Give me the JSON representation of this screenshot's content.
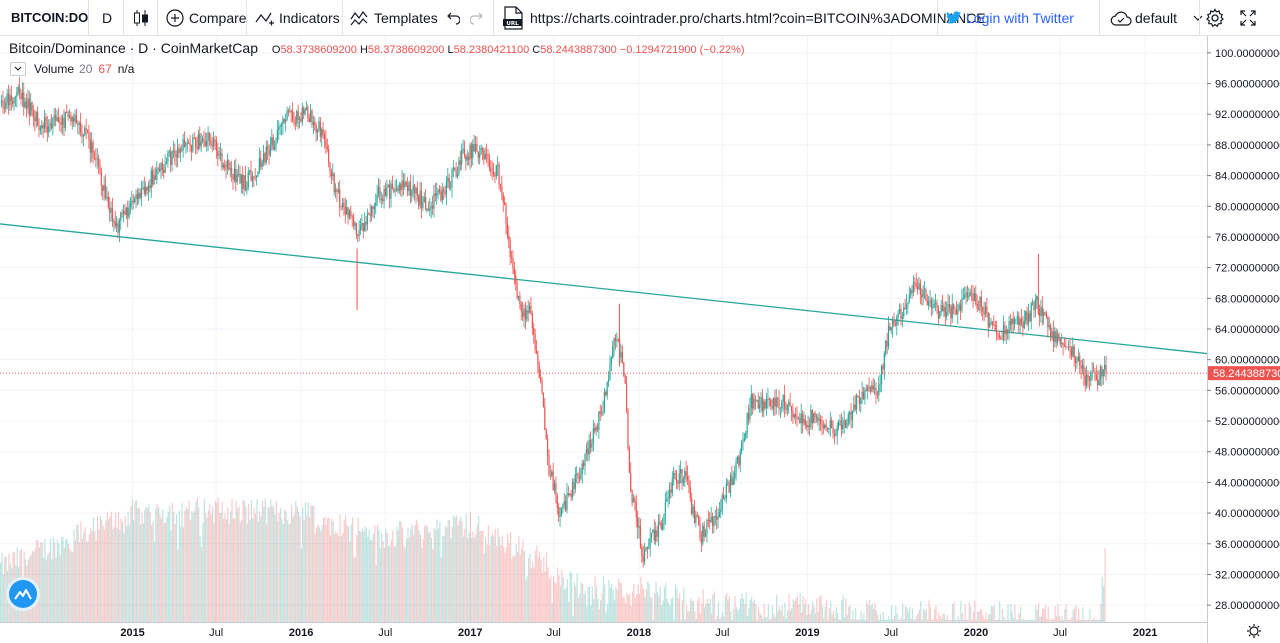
{
  "toolbar": {
    "symbol": "BITCOIN:DO",
    "interval": "D",
    "compare": "Compare",
    "indicators": "Indicators",
    "templates": "Templates",
    "url": "https://charts.cointrader.pro/charts.html?coin=BITCOIN%3ADOMINANCE",
    "login": "Login with Twitter",
    "layout": "default"
  },
  "legend": {
    "title": "Bitcoin/Dominance · D · CoinMarketCap",
    "o_label": "O",
    "o": "58.3738609200",
    "h_label": "H",
    "h": "58.3738609200",
    "l_label": "L",
    "l": "58.2380421100",
    "c_label": "C",
    "c": "58.2443887300",
    "change": "−0.1294721900 (−0.22%)"
  },
  "volume_legend": {
    "label": "Volume",
    "period": "20",
    "value": "67",
    "na": "n/a"
  },
  "colors": {
    "up": "#26a69a",
    "down": "#ef5350",
    "trendline": "#26a69a",
    "last_price": "#ef5350",
    "grid": "#f0f3fa"
  },
  "icons": [
    "candles-icon",
    "compare-plus-icon",
    "indicators-icon",
    "templates-icon",
    "undo-icon",
    "redo-icon",
    "url-icon",
    "twitter-icon",
    "cloud-icon",
    "chevron-down-icon",
    "settings-gear-icon",
    "fullscreen-icon",
    "camera-icon",
    "brand-logo-icon"
  ],
  "chart_data": {
    "type": "candlestick",
    "title": "Bitcoin/Dominance · D · CoinMarketCap",
    "y_scale": {
      "ylim": [
        25.8,
        102.2
      ],
      "ticks": [
        "100.000000000",
        "96.000000000",
        "92.000000000",
        "88.000000000",
        "84.000000000",
        "80.000000000",
        "76.000000000",
        "72.000000000",
        "68.000000000",
        "64.000000000",
        "60.000000000",
        "56.000000000",
        "52.000000000",
        "48.000000000",
        "44.000000000",
        "40.000000000",
        "36.000000000",
        "32.000000000",
        "28.000000000"
      ]
    },
    "x_axis": {
      "xlim": [
        "2014-03-20",
        "2021-05-15"
      ],
      "ticks": [
        {
          "label": "2015",
          "date": "2015-01-01"
        },
        {
          "label": "Jul",
          "date": "2015-07-01"
        },
        {
          "label": "2016",
          "date": "2016-01-01"
        },
        {
          "label": "Jul",
          "date": "2016-07-01"
        },
        {
          "label": "2017",
          "date": "2017-01-01"
        },
        {
          "label": "Jul",
          "date": "2017-07-01"
        },
        {
          "label": "2018",
          "date": "2018-01-01"
        },
        {
          "label": "Jul",
          "date": "2018-07-01"
        },
        {
          "label": "2019",
          "date": "2019-01-01"
        },
        {
          "label": "Jul",
          "date": "2019-07-01"
        },
        {
          "label": "2020",
          "date": "2020-01-01"
        },
        {
          "label": "Jul",
          "date": "2020-07-01"
        },
        {
          "label": "2021",
          "date": "2021-01-01"
        }
      ]
    },
    "price_path": [
      [
        "2014-03-20",
        93.5
      ],
      [
        "2014-05-01",
        94.8
      ],
      [
        "2014-06-15",
        90.5
      ],
      [
        "2014-09-01",
        91.5
      ],
      [
        "2014-10-10",
        87.0
      ],
      [
        "2014-11-25",
        77.0
      ],
      [
        "2015-01-01",
        80.5
      ],
      [
        "2015-02-20",
        84.5
      ],
      [
        "2015-04-15",
        87.5
      ],
      [
        "2015-06-10",
        89.0
      ],
      [
        "2015-08-01",
        84.5
      ],
      [
        "2015-09-01",
        83.0
      ],
      [
        "2015-10-15",
        86.5
      ],
      [
        "2015-12-01",
        91.5
      ],
      [
        "2016-01-15",
        92.0
      ],
      [
        "2016-02-15",
        89.5
      ],
      [
        "2016-03-15",
        82.0
      ],
      [
        "2016-05-05",
        76.0
      ],
      [
        "2016-06-15",
        81.5
      ],
      [
        "2016-08-15",
        82.5
      ],
      [
        "2016-10-01",
        80.0
      ],
      [
        "2016-11-15",
        83.0
      ],
      [
        "2016-12-15",
        86.5
      ],
      [
        "2017-01-15",
        87.5
      ],
      [
        "2017-02-10",
        85.5
      ],
      [
        "2017-03-01",
        84.5
      ],
      [
        "2017-03-15",
        80.0
      ],
      [
        "2017-04-01",
        72.0
      ],
      [
        "2017-04-20",
        66.5
      ],
      [
        "2017-05-10",
        66.0
      ],
      [
        "2017-06-01",
        57.0
      ],
      [
        "2017-06-20",
        46.0
      ],
      [
        "2017-07-15",
        39.5
      ],
      [
        "2017-08-15",
        44.0
      ],
      [
        "2017-09-10",
        48.0
      ],
      [
        "2017-10-15",
        54.0
      ],
      [
        "2017-11-10",
        63.5
      ],
      [
        "2017-12-01",
        58.0
      ],
      [
        "2017-12-12",
        44.0
      ],
      [
        "2017-12-25",
        40.0
      ],
      [
        "2018-01-10",
        34.0
      ],
      [
        "2018-01-25",
        36.5
      ],
      [
        "2018-02-15",
        38.0
      ],
      [
        "2018-03-15",
        44.5
      ],
      [
        "2018-04-10",
        45.0
      ],
      [
        "2018-04-25",
        41.0
      ],
      [
        "2018-05-15",
        37.0
      ],
      [
        "2018-06-15",
        39.5
      ],
      [
        "2018-08-01",
        46.0
      ],
      [
        "2018-09-01",
        54.5
      ],
      [
        "2018-10-01",
        54.0
      ],
      [
        "2018-11-15",
        54.5
      ],
      [
        "2018-12-15",
        52.0
      ],
      [
        "2019-01-20",
        52.5
      ],
      [
        "2019-03-01",
        51.0
      ],
      [
        "2019-04-01",
        52.0
      ],
      [
        "2019-04-20",
        55.0
      ],
      [
        "2019-05-15",
        56.5
      ],
      [
        "2019-06-01",
        56.0
      ],
      [
        "2019-06-25",
        63.5
      ],
      [
        "2019-07-20",
        66.0
      ],
      [
        "2019-08-20",
        69.5
      ],
      [
        "2019-09-15",
        68.0
      ],
      [
        "2019-10-15",
        66.0
      ],
      [
        "2019-11-15",
        66.5
      ],
      [
        "2019-12-15",
        68.5
      ],
      [
        "2020-01-15",
        67.0
      ],
      [
        "2020-02-15",
        62.5
      ],
      [
        "2020-03-10",
        64.5
      ],
      [
        "2020-04-15",
        65.0
      ],
      [
        "2020-05-10",
        67.5
      ],
      [
        "2020-05-25",
        65.5
      ],
      [
        "2020-06-15",
        63.5
      ],
      [
        "2020-07-15",
        61.5
      ],
      [
        "2020-08-01",
        60.5
      ],
      [
        "2020-08-25",
        57.5
      ],
      [
        "2020-09-15",
        57.5
      ],
      [
        "2020-10-05",
        58.3
      ]
    ],
    "trendline": {
      "from": [
        "2014-03-20",
        77.7
      ],
      "to": [
        "2021-05-15",
        60.8
      ]
    },
    "last_price": {
      "value": 58.24438873,
      "label": "58.244388730"
    },
    "volume_path": [
      [
        "2014-03-20",
        33.0
      ],
      [
        "2015-01-01",
        40.0
      ],
      [
        "2015-07-01",
        40.5
      ],
      [
        "2016-01-01",
        40.0
      ],
      [
        "2016-07-01",
        37.0
      ],
      [
        "2017-01-01",
        38.5
      ],
      [
        "2017-06-01",
        34.0
      ],
      [
        "2017-09-01",
        30.0
      ],
      [
        "2018-01-01",
        30.0
      ],
      [
        "2018-07-01",
        28.0
      ],
      [
        "2019-01-01",
        28.0
      ],
      [
        "2019-07-01",
        27.0
      ],
      [
        "2020-01-01",
        27.0
      ],
      [
        "2020-07-01",
        26.5
      ],
      [
        "2020-09-20",
        26.0
      ],
      [
        "2020-10-01",
        32.0
      ],
      [
        "2020-10-05",
        34.0
      ]
    ],
    "grid": true,
    "legend": "top-left"
  }
}
